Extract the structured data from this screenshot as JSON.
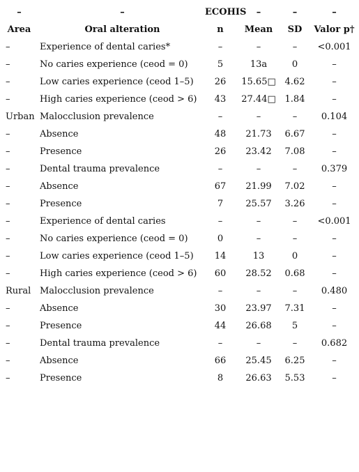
{
  "header_top": {
    "area": "–",
    "alteration": "–",
    "group": "ECOHIS",
    "mean": "–",
    "sd": "–",
    "p": "–"
  },
  "header": {
    "area": "Area",
    "alteration": "Oral alteration",
    "n": "n",
    "mean": "Mean",
    "sd": "SD",
    "p": "Valor p†"
  },
  "rows": [
    {
      "area": "–",
      "alteration": "Experience of dental caries*",
      "n": "–",
      "mean": "–",
      "sd": "–",
      "p": "<0.001"
    },
    {
      "area": "–",
      "alteration": "No caries experience (ceod = 0)",
      "n": "5",
      "mean": "13a",
      "sd": "0",
      "p": "–"
    },
    {
      "area": "–",
      "alteration": "Low caries experience (ceod 1–5)",
      "n": "26",
      "mean": "15.65□",
      "sd": "4.62",
      "p": "–"
    },
    {
      "area": "–",
      "alteration": "High caries experience (ceod > 6)",
      "n": "43",
      "mean": "27.44□",
      "sd": "1.84",
      "p": "–"
    },
    {
      "area": "Urban",
      "alteration": "Malocclusion prevalence",
      "n": "–",
      "mean": "–",
      "sd": "–",
      "p": "0.104"
    },
    {
      "area": "–",
      "alteration": "Absence",
      "n": "48",
      "mean": "21.73",
      "sd": "6.67",
      "p": "–"
    },
    {
      "area": "–",
      "alteration": "Presence",
      "n": "26",
      "mean": "23.42",
      "sd": "7.08",
      "p": "–"
    },
    {
      "area": "–",
      "alteration": "Dental trauma prevalence",
      "n": "–",
      "mean": "–",
      "sd": "–",
      "p": "0.379"
    },
    {
      "area": "–",
      "alteration": "Absence",
      "n": "67",
      "mean": "21.99",
      "sd": "7.02",
      "p": "–"
    },
    {
      "area": "–",
      "alteration": "Presence",
      "n": "7",
      "mean": "25.57",
      "sd": "3.26",
      "p": "–"
    },
    {
      "area": "–",
      "alteration": "Experience of dental caries",
      "n": "–",
      "mean": "–",
      "sd": "–",
      "p": "<0.001"
    },
    {
      "area": "–",
      "alteration": "No caries experience (ceod = 0)",
      "n": "0",
      "mean": "–",
      "sd": "–",
      "p": "–"
    },
    {
      "area": "–",
      "alteration": "Low caries experience (ceod 1–5)",
      "n": "14",
      "mean": "13",
      "sd": "0",
      "p": "–"
    },
    {
      "area": "–",
      "alteration": "High caries experience (ceod > 6)",
      "n": "60",
      "mean": "28.52",
      "sd": "0.68",
      "p": "–"
    },
    {
      "area": "Rural",
      "alteration": "Malocclusion prevalence",
      "n": "–",
      "mean": "–",
      "sd": "–",
      "p": "0.480"
    },
    {
      "area": "–",
      "alteration": "Absence",
      "n": "30",
      "mean": "23.97",
      "sd": "7.31",
      "p": "–"
    },
    {
      "area": "–",
      "alteration": "Presence",
      "n": "44",
      "mean": "26.68",
      "sd": "5",
      "p": "–"
    },
    {
      "area": "–",
      "alteration": "Dental trauma prevalence",
      "n": "–",
      "mean": "–",
      "sd": "–",
      "p": "0.682"
    },
    {
      "area": "–",
      "alteration": "Absence",
      "n": "66",
      "mean": "25.45",
      "sd": "6.25",
      "p": "–"
    },
    {
      "area": "–",
      "alteration": "Presence",
      "n": "8",
      "mean": "26.63",
      "sd": "5.53",
      "p": "–"
    }
  ]
}
